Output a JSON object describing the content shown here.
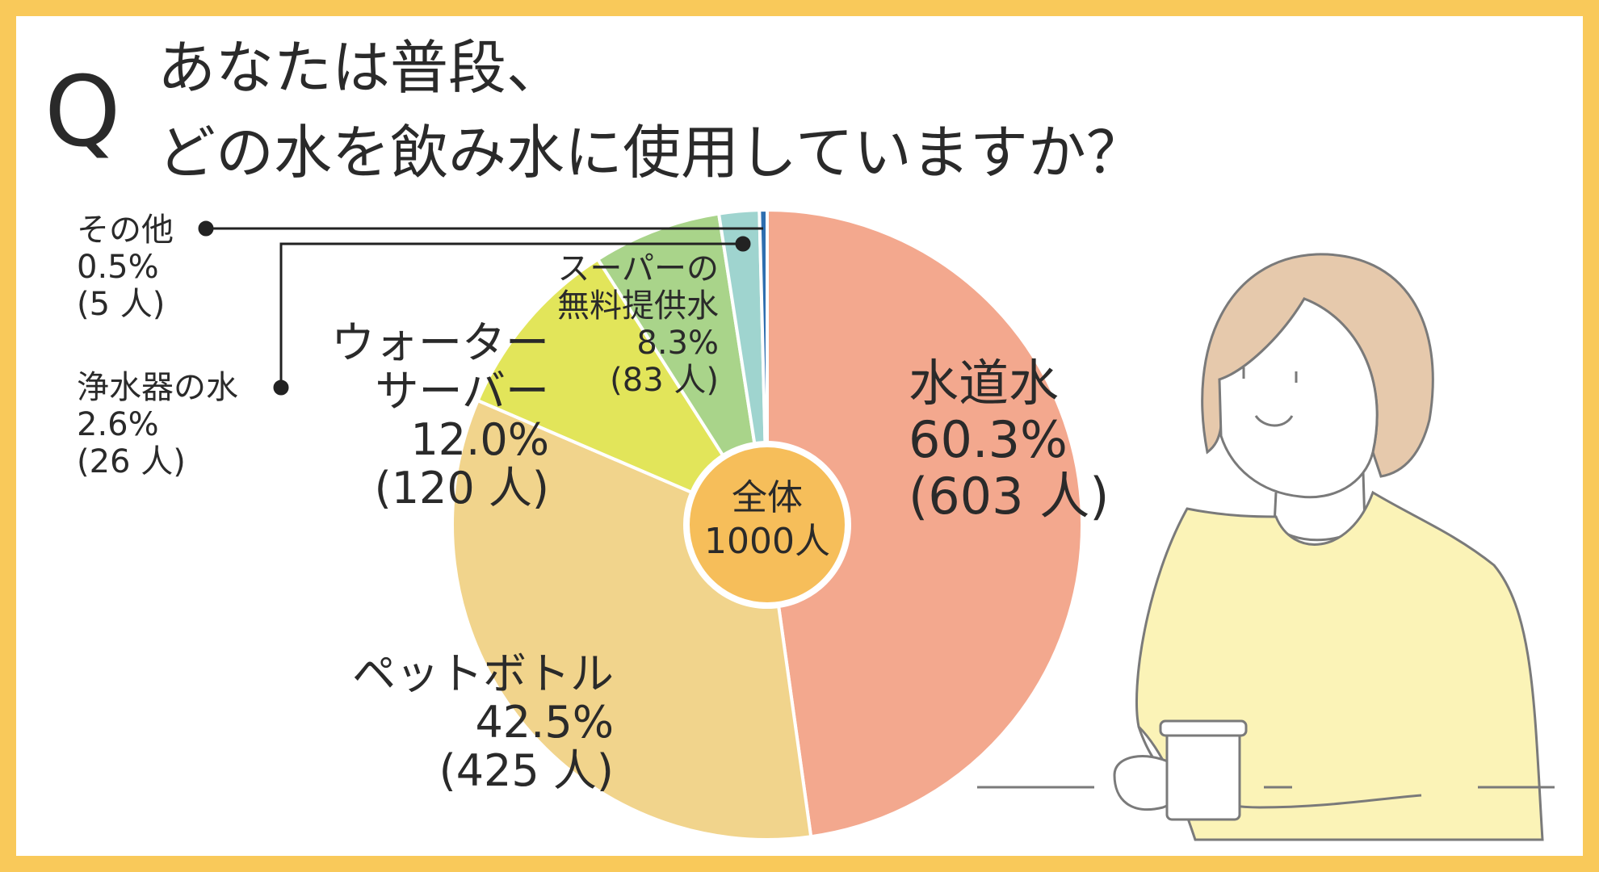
{
  "question": {
    "mark": "Q",
    "line1": "あなたは普段、",
    "line2": "どの水を飲み水に使用していますか？"
  },
  "center_label": {
    "line1": "全体",
    "line2": "1000人"
  },
  "colors": {
    "border": "#f9c95a",
    "center_circle": "#f6be5a",
    "tap": "#f3a88e",
    "bottle": "#f1d48c",
    "server": "#e2e55a",
    "super": "#a9d48a",
    "purifier": "#9fd4cf",
    "other": "#2f6fb0"
  },
  "chart_data": {
    "type": "pie",
    "title": "あなたは普段、どの水を飲み水に使用していますか？",
    "total_label": "全体 1000人",
    "slices": [
      {
        "key": "tap",
        "name": "水道水",
        "percent": "60.3%",
        "count": "(603 人)",
        "value": 603
      },
      {
        "key": "bottle",
        "name": "ペットボトル",
        "percent": "42.5%",
        "count": "(425 人)",
        "value": 425
      },
      {
        "key": "server",
        "name": "ウォーターサーバー",
        "name_line1": "ウォーター",
        "name_line2": "サーバー",
        "percent": "12.0%",
        "count": "(120 人)",
        "value": 120
      },
      {
        "key": "super",
        "name": "スーパーの無料提供水",
        "name_line1": "スーパーの",
        "name_line2": "無料提供水",
        "percent": "8.3%",
        "count": "(83 人)",
        "value": 83
      },
      {
        "key": "purifier",
        "name": "浄水器の水",
        "percent": "2.6%",
        "count": "(26 人)",
        "value": 26
      },
      {
        "key": "other",
        "name": "その他",
        "percent": "0.5%",
        "count": "(5 人)",
        "value": 5
      }
    ]
  }
}
